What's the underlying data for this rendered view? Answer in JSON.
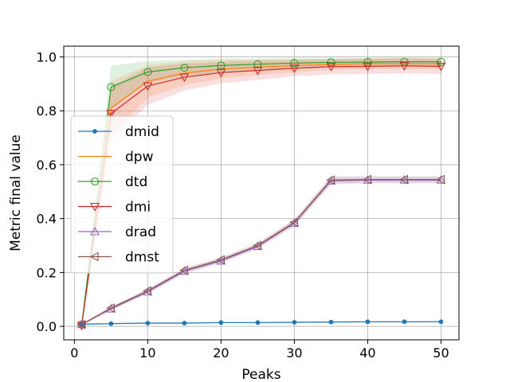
{
  "chart_data": {
    "type": "line",
    "xlabel": "Peaks",
    "ylabel": "Metric final value",
    "xlim": [
      -1.45,
      52.45
    ],
    "ylim": [
      -0.05,
      1.04
    ],
    "xticks": [
      0,
      10,
      20,
      30,
      40,
      50
    ],
    "yticks": [
      0.0,
      0.2,
      0.4,
      0.6,
      0.8,
      1.0
    ],
    "xtick_labels": [
      "0",
      "10",
      "20",
      "30",
      "40",
      "50"
    ],
    "ytick_labels": [
      "0.0",
      "0.2",
      "0.4",
      "0.6",
      "0.8",
      "1.0"
    ],
    "grid": true,
    "legend_position": "center-left",
    "x": [
      1,
      5,
      10,
      15,
      20,
      25,
      30,
      35,
      40,
      45,
      50
    ],
    "series": [
      {
        "name": "dmid",
        "color": "#1f77b4",
        "marker": "dot",
        "values": [
          0.008,
          0.01,
          0.012,
          0.012,
          0.014,
          0.014,
          0.015,
          0.016,
          0.017,
          0.017,
          0.017
        ],
        "band": [
          0.003,
          0.003,
          0.003,
          0.003,
          0.003,
          0.003,
          0.003,
          0.003,
          0.003,
          0.003,
          0.003
        ]
      },
      {
        "name": "dpw",
        "color": "#ff7f0e",
        "marker": "none",
        "values": [
          0.005,
          0.81,
          0.91,
          0.94,
          0.955,
          0.962,
          0.968,
          0.972,
          0.975,
          0.975,
          0.975
        ],
        "band": [
          0.004,
          0.1,
          0.06,
          0.045,
          0.035,
          0.03,
          0.025,
          0.02,
          0.02,
          0.02,
          0.02
        ]
      },
      {
        "name": "dtd",
        "color": "#2ca02c",
        "marker": "circle",
        "values": [
          0.007,
          0.888,
          0.944,
          0.96,
          0.968,
          0.973,
          0.977,
          0.98,
          0.981,
          0.982,
          0.982
        ],
        "band": [
          0.004,
          0.08,
          0.04,
          0.03,
          0.025,
          0.02,
          0.018,
          0.016,
          0.015,
          0.015,
          0.015
        ]
      },
      {
        "name": "dmi",
        "color": "#d62728",
        "marker": "triangle-down",
        "values": [
          0.003,
          0.79,
          0.892,
          0.925,
          0.942,
          0.95,
          0.958,
          0.964,
          0.965,
          0.967,
          0.965
        ],
        "band": [
          0.004,
          0.1,
          0.07,
          0.05,
          0.04,
          0.035,
          0.03,
          0.028,
          0.028,
          0.028,
          0.028
        ]
      },
      {
        "name": "drad",
        "color": "#9467bd",
        "marker": "triangle-up",
        "values": [
          0.007,
          0.065,
          0.128,
          0.205,
          0.243,
          0.297,
          0.383,
          0.54,
          0.543,
          0.543,
          0.543
        ],
        "band": [
          0.003,
          0.006,
          0.008,
          0.01,
          0.01,
          0.01,
          0.012,
          0.014,
          0.012,
          0.012,
          0.012
        ]
      },
      {
        "name": "dmst",
        "color": "#8c564b",
        "marker": "triangle-left",
        "values": [
          0.007,
          0.068,
          0.132,
          0.208,
          0.247,
          0.3,
          0.386,
          0.543,
          0.545,
          0.545,
          0.545
        ],
        "band": [
          0.003,
          0.006,
          0.008,
          0.01,
          0.01,
          0.01,
          0.012,
          0.014,
          0.012,
          0.012,
          0.012
        ]
      }
    ]
  }
}
